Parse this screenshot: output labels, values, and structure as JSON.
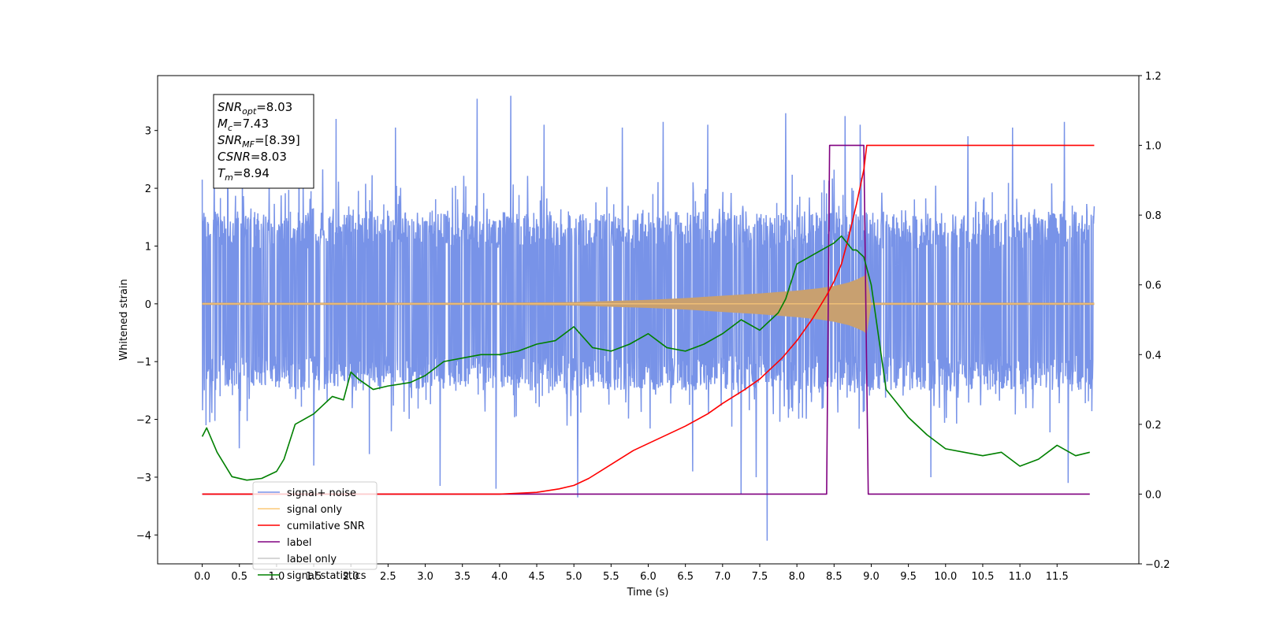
{
  "chart_data": {
    "type": "line",
    "xlabel": "Time (s)",
    "ylabel": "Whitened strain",
    "xlim": [
      -0.6,
      12.6
    ],
    "ylim": [
      -4.5,
      3.95
    ],
    "y2lim": [
      -0.2,
      1.2
    ],
    "x_ticks": [
      "0.0",
      "0.5",
      "1.0",
      "1.5",
      "2.0",
      "2.5",
      "3.0",
      "3.5",
      "4.0",
      "4.5",
      "5.0",
      "5.5",
      "6.0",
      "6.5",
      "7.0",
      "7.5",
      "8.0",
      "8.5",
      "9.0",
      "9.5",
      "10.0",
      "10.5",
      "11.0",
      "11.5"
    ],
    "y_ticks": [
      "3",
      "2",
      "1",
      "0",
      "−1",
      "−2",
      "−3",
      "−4"
    ],
    "y2_ticks": [
      "1.2",
      "1.0",
      "0.8",
      "0.6",
      "0.4",
      "0.2",
      "0.0",
      "−0.2"
    ],
    "info_box": [
      {
        "base": "SNR",
        "sub": "opt",
        "value": "=8.03"
      },
      {
        "base": "M",
        "sub": "c",
        "value": "=7.43"
      },
      {
        "base": "SNR",
        "sub": "MF",
        "value": "=[8.39]"
      },
      {
        "base": "CSNR",
        "sub": "",
        "value": "=8.03"
      },
      {
        "base": "T",
        "sub": "m",
        "value": "=8.94"
      }
    ],
    "legend": {
      "placement": "lower-left",
      "entries": [
        {
          "label": "signal+ noise",
          "color": "#7893e8"
        },
        {
          "label": "signal only",
          "color": "#fcc878"
        },
        {
          "label": "cumilative SNR",
          "color": "#ff0000"
        },
        {
          "label": "label",
          "color": "#800080"
        },
        {
          "label": "label only",
          "color": "#c8c8c8"
        },
        {
          "label": "signal statistics",
          "color": "#008000"
        }
      ]
    },
    "series": [
      {
        "name": "signal+ noise",
        "axis": "left",
        "kind": "noise-band",
        "color": "#7893e8",
        "x_range": [
          0.0,
          12.0
        ],
        "band_envelope": [
          -1.5,
          1.6
        ],
        "spike_points": [
          [
            0.0,
            2.15
          ],
          [
            0.1,
            -2.05
          ],
          [
            0.16,
            2.3
          ],
          [
            0.5,
            -2.5
          ],
          [
            0.9,
            2.1
          ],
          [
            1.3,
            3.1
          ],
          [
            1.5,
            -2.8
          ],
          [
            1.8,
            3.2
          ],
          [
            2.25,
            -2.6
          ],
          [
            2.6,
            3.05
          ],
          [
            3.2,
            -3.15
          ],
          [
            3.7,
            3.55
          ],
          [
            3.95,
            -3.2
          ],
          [
            4.15,
            3.6
          ],
          [
            4.6,
            3.1
          ],
          [
            5.05,
            -3.35
          ],
          [
            5.65,
            3.05
          ],
          [
            6.2,
            3.15
          ],
          [
            6.6,
            -2.9
          ],
          [
            6.8,
            3.1
          ],
          [
            7.25,
            -3.3
          ],
          [
            7.45,
            -3.0
          ],
          [
            7.6,
            -4.1
          ],
          [
            7.85,
            3.3
          ],
          [
            8.65,
            3.25
          ],
          [
            8.85,
            3.1
          ],
          [
            9.8,
            -3.0
          ],
          [
            10.3,
            2.9
          ],
          [
            10.9,
            3.05
          ],
          [
            11.6,
            3.15
          ],
          [
            11.65,
            -3.1
          ]
        ]
      },
      {
        "name": "signal only",
        "axis": "left",
        "kind": "chirp-envelope",
        "color": "#fcc878",
        "fill_color": "#c8a070",
        "envelope": {
          "x": [
            0.0,
            4.0,
            5.0,
            5.5,
            6.0,
            6.5,
            7.0,
            7.5,
            8.0,
            8.3,
            8.5,
            8.7,
            8.8,
            8.9,
            8.94,
            9.0,
            12.0
          ],
          "amp": [
            0.02,
            0.02,
            0.03,
            0.05,
            0.07,
            0.1,
            0.14,
            0.18,
            0.23,
            0.27,
            0.31,
            0.37,
            0.42,
            0.48,
            0.52,
            0.02,
            0.02
          ]
        }
      },
      {
        "name": "cumilative SNR",
        "axis": "right",
        "color": "#ff0000",
        "x": [
          0.0,
          4.0,
          4.5,
          4.8,
          5.0,
          5.2,
          5.5,
          5.8,
          6.0,
          6.3,
          6.5,
          6.8,
          7.0,
          7.3,
          7.5,
          7.8,
          8.0,
          8.2,
          8.4,
          8.5,
          8.6,
          8.7,
          8.8,
          8.9,
          8.94,
          9.0,
          12.0
        ],
        "values": [
          0.0,
          0.0,
          0.005,
          0.015,
          0.025,
          0.045,
          0.085,
          0.125,
          0.145,
          0.175,
          0.195,
          0.23,
          0.26,
          0.3,
          0.33,
          0.39,
          0.44,
          0.5,
          0.57,
          0.61,
          0.66,
          0.74,
          0.83,
          0.93,
          1.0,
          1.0,
          1.0
        ]
      },
      {
        "name": "label",
        "axis": "right",
        "color": "#800080",
        "x": [
          0.0,
          8.4,
          8.44,
          8.9,
          8.96,
          11.94
        ],
        "values": [
          0.0,
          0.0,
          1.0,
          1.0,
          0.0,
          0.0
        ]
      },
      {
        "name": "signal statistics",
        "axis": "right",
        "color": "#008000",
        "x": [
          0.0,
          0.06,
          0.2,
          0.4,
          0.6,
          0.8,
          1.0,
          1.1,
          1.25,
          1.5,
          1.75,
          1.9,
          2.0,
          2.1,
          2.3,
          2.5,
          2.8,
          3.0,
          3.25,
          3.5,
          3.75,
          4.0,
          4.25,
          4.5,
          4.75,
          5.0,
          5.25,
          5.5,
          5.75,
          6.0,
          6.25,
          6.5,
          6.75,
          7.0,
          7.25,
          7.5,
          7.75,
          7.85,
          8.0,
          8.25,
          8.5,
          8.6,
          8.75,
          8.8,
          8.9,
          9.0,
          9.2,
          9.5,
          9.75,
          10.0,
          10.25,
          10.5,
          10.75,
          11.0,
          11.25,
          11.5,
          11.75,
          11.94
        ],
        "values": [
          0.165,
          0.19,
          0.12,
          0.05,
          0.04,
          0.045,
          0.065,
          0.1,
          0.2,
          0.23,
          0.28,
          0.27,
          0.35,
          0.33,
          0.3,
          0.31,
          0.32,
          0.34,
          0.38,
          0.39,
          0.4,
          0.4,
          0.41,
          0.43,
          0.44,
          0.48,
          0.42,
          0.41,
          0.43,
          0.46,
          0.42,
          0.41,
          0.43,
          0.46,
          0.5,
          0.47,
          0.52,
          0.56,
          0.66,
          0.69,
          0.72,
          0.74,
          0.7,
          0.7,
          0.68,
          0.6,
          0.3,
          0.22,
          0.17,
          0.13,
          0.12,
          0.11,
          0.12,
          0.08,
          0.1,
          0.14,
          0.11,
          0.12
        ]
      }
    ]
  }
}
